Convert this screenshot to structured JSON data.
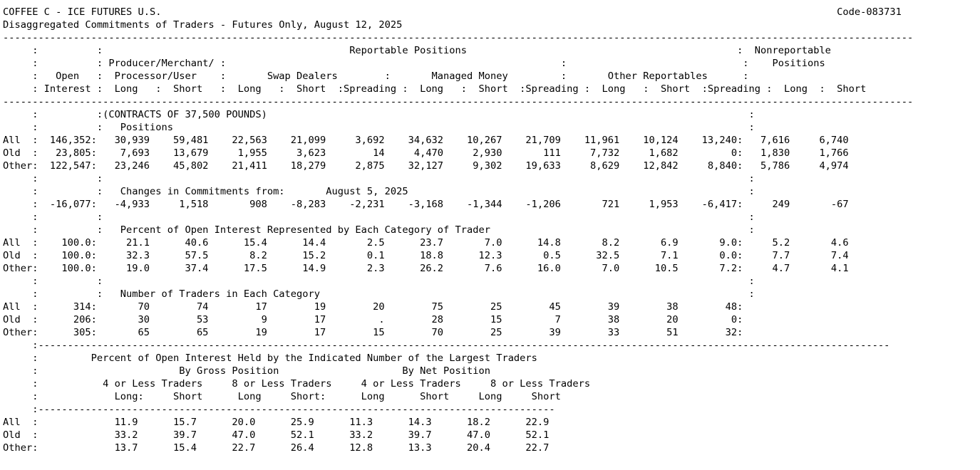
{
  "header": {
    "title": "COFFEE C - ICE FUTURES U.S.",
    "code": "Code-083731",
    "subtitle": "Disaggregated Commitments of Traders - Futures Only, August 12, 2025"
  },
  "lines": [
    "",
    "",
    "-----------------------------------------------------------------------------------------------------------------------------------------------------------",
    "     :          :                                          Reportable Positions                                              :  Nonreportable",
    "     :          : Producer/Merchant/ :                                                         :                              :    Positions",
    "     :   Open   :  Processor/User    :       Swap Dealers        :       Managed Money         :       Other Reportables      :",
    "     : Interest :  Long   :  Short   :  Long   :  Short  :Spreading :  Long   :  Short  :Spreading :  Long   :  Short  :Spreading :  Long  :  Short",
    "-----------------------------------------------------------------------------------------------------------------------------------------------------------",
    "     :          :(CONTRACTS OF 37,500 POUNDS)                                                                                  :",
    "     :          :   Positions                                                                                                  :",
    "All  :  146,352:   30,939    59,481    22,563    21,099     3,692    34,632    10,267    21,709    11,961    10,124    13,240:   7,616     6,740",
    "Old  :   23,805:    7,693    13,679     1,955     3,623        14     4,470     2,930       111     7,732     1,682         0:   1,830     1,766",
    "Other:  122,547:   23,246    45,802    21,411    18,279     2,875    32,127     9,302    19,633     8,629    12,842     8,840:   5,786     4,974",
    "     :          :                                                                                                              :",
    "     :          :   Changes in Commitments from:       August 5, 2025                                                          :",
    "     :  -16,077:   -4,933     1,518       908    -8,283    -2,231    -3,168    -1,344    -1,206       721     1,953    -6,417:     249       -67",
    "     :          :                                                                                                              :",
    "     :          :   Percent of Open Interest Represented by Each Category of Trader                                            :",
    "All  :    100.0:     21.1      40.6      15.4      14.4       2.5      23.7       7.0      14.8       8.2       6.9       9.0:     5.2       4.6",
    "Old  :    100.0:     32.3      57.5       8.2      15.2       0.1      18.8      12.3       0.5      32.5       7.1       0.0:     7.7       7.4",
    "Other:    100.0:     19.0      37.4      17.5      14.9       2.3      26.2       7.6      16.0       7.0      10.5       7.2:     4.7       4.1",
    "     :          :                                                                                                              :",
    "     :          :   Number of Traders in Each Category                                                                         :",
    "All  :      314:       70        74        17        19        20        75        25        45        39        38        48:",
    "Old  :      206:       30        53         9        17         .        28        15         7        38        20         0:",
    "Other:      305:       65        65        19        17        15        70        25        39        33        51        32:",
    "     :-------------------------------------------------------------------------------------------------------------------------------------------------",
    "     :         Percent of Open Interest Held by the Indicated Number of the Largest Traders",
    "     :                        By Gross Position                     By Net Position",
    "     :           4 or Less Traders     8 or Less Traders     4 or Less Traders     8 or Less Traders",
    "     :             Long:     Short      Long     Short:      Long      Short     Long     Short",
    "     :----------------------------------------------------------------------------------------",
    "All  :             11.9      15.7      20.0      25.9      11.3      14.3      18.2      22.9",
    "Old  :             33.2      39.7      47.0      52.1      33.2      39.7      47.0      52.1",
    "Other:             13.7      15.4      22.7      26.4      12.8      13.3      20.4      22.7"
  ]
}
